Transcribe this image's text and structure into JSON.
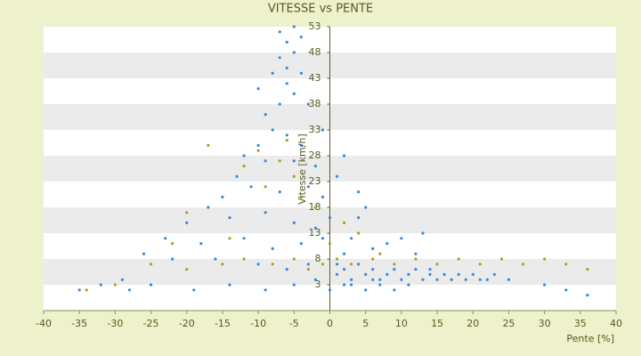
{
  "chart_data": {
    "type": "scatter",
    "title": "VITESSE vs PENTE",
    "x_label": "Pente [%]",
    "y_label": "Vitesse [km/h]",
    "xlim": [
      -40,
      40
    ],
    "xticks": [
      -40,
      -35,
      -30,
      -25,
      -20,
      -15,
      -10,
      -5,
      0,
      5,
      10,
      15,
      20,
      25,
      30,
      35,
      40
    ],
    "ylim": [
      -2,
      53
    ],
    "yticks": [
      53,
      48,
      43,
      38,
      33,
      28,
      23,
      18,
      13,
      8,
      3
    ],
    "bands": true,
    "series": [
      {
        "color": "#3a8ad6",
        "x": [
          -7,
          -6,
          -5,
          -4,
          -7,
          -6,
          -5,
          -8,
          -6,
          -5,
          -4,
          -7,
          -9,
          -10,
          -3,
          -8,
          -6,
          -4,
          -10,
          -12,
          -9,
          -5,
          -2,
          -13,
          -11,
          -7,
          -3,
          -1,
          -15,
          -17,
          -14,
          -9,
          -5,
          -2,
          -20,
          -23,
          -18,
          -12,
          -8,
          -4,
          -1,
          -26,
          -22,
          -16,
          -10,
          -6,
          -3,
          -29,
          -25,
          -19,
          -14,
          -9,
          -5,
          -2,
          0,
          1,
          2,
          3,
          4,
          5,
          6,
          7,
          8,
          9,
          10,
          11,
          12,
          13,
          14,
          15,
          16,
          17,
          18,
          19,
          21,
          23,
          25,
          2,
          3,
          4,
          4,
          5,
          6,
          8,
          10,
          12,
          13,
          3,
          5,
          7,
          9,
          1,
          2,
          6,
          11,
          14,
          20,
          22,
          30,
          33,
          36,
          -35,
          -32,
          -28,
          0,
          1,
          2,
          -1
        ],
        "y": [
          52,
          50,
          53,
          51,
          47,
          45,
          48,
          44,
          42,
          40,
          44,
          38,
          36,
          41,
          38,
          33,
          32,
          30,
          30,
          28,
          27,
          27,
          26,
          24,
          22,
          21,
          22,
          20,
          20,
          18,
          16,
          17,
          15,
          14,
          15,
          12,
          11,
          12,
          10,
          11,
          12,
          9,
          8,
          8,
          7,
          6,
          7,
          4,
          3,
          2,
          3,
          2,
          3,
          4,
          2,
          5,
          6,
          4,
          7,
          5,
          6,
          4,
          5,
          6,
          4,
          5,
          6,
          4,
          5,
          4,
          5,
          4,
          5,
          4,
          4,
          5,
          4,
          9,
          12,
          16,
          21,
          18,
          10,
          11,
          12,
          9,
          13,
          3,
          2,
          3,
          2,
          7,
          3,
          4,
          3,
          6,
          5,
          4,
          3,
          2,
          1,
          2,
          3,
          2,
          16,
          24,
          28,
          33
        ]
      },
      {
        "color": "#a8a020",
        "x": [
          -30,
          -25,
          -20,
          -15,
          -12,
          -8,
          -5,
          -3,
          -1,
          1,
          3,
          6,
          9,
          12,
          15,
          18,
          21,
          24,
          27,
          30,
          33,
          36,
          -17,
          -12,
          -10,
          -7,
          -5,
          -4,
          -9,
          -6,
          -20,
          -14,
          0,
          4,
          2,
          -34,
          -2,
          7,
          -22
        ],
        "y": [
          3,
          7,
          6,
          7,
          8,
          7,
          8,
          6,
          7,
          8,
          7,
          8,
          7,
          8,
          7,
          8,
          7,
          8,
          7,
          8,
          7,
          6,
          30,
          26,
          29,
          27,
          24,
          20,
          22,
          31,
          17,
          12,
          11,
          13,
          15,
          2,
          18,
          9,
          11
        ]
      }
    ]
  }
}
